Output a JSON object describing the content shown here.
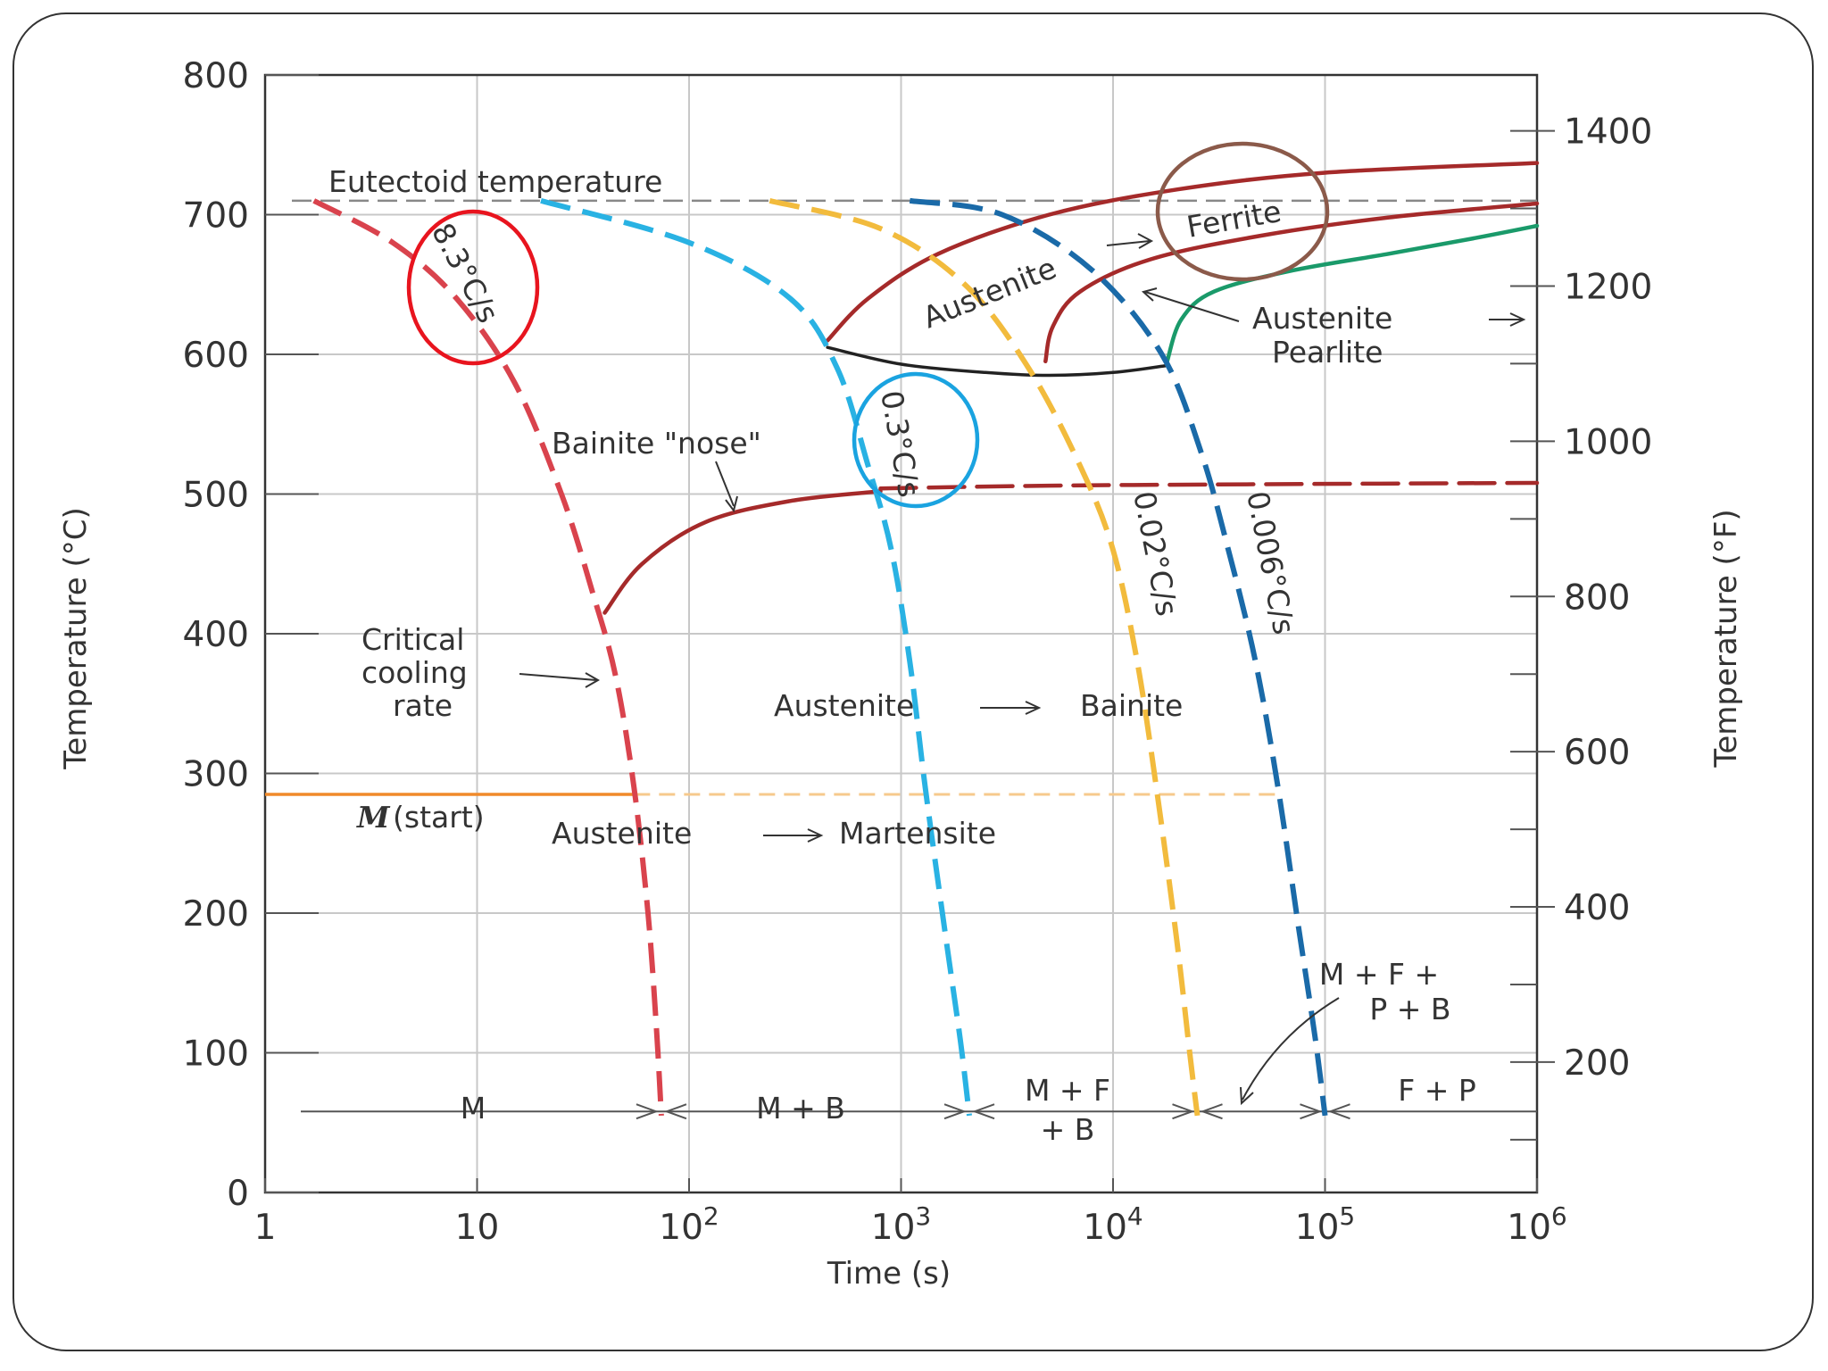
{
  "chart_data": {
    "type": "line",
    "title": "",
    "xlabel": "Time (s)",
    "ylabel": "Temperature (°C)",
    "y2label": "Temperature (°F)",
    "xscale": "log",
    "xlim": [
      1,
      1000000
    ],
    "ylim": [
      0,
      800
    ],
    "x_ticks": [
      {
        "value": 1,
        "base": "1",
        "exp": ""
      },
      {
        "value": 10,
        "base": "10",
        "exp": ""
      },
      {
        "value": 100,
        "base": "10",
        "exp": "2"
      },
      {
        "value": 1000,
        "base": "10",
        "exp": "3"
      },
      {
        "value": 10000,
        "base": "10",
        "exp": "4"
      },
      {
        "value": 100000,
        "base": "10",
        "exp": "5"
      },
      {
        "value": 1000000,
        "base": "10",
        "exp": "6"
      }
    ],
    "y_ticks": [
      0,
      100,
      200,
      300,
      400,
      500,
      600,
      700,
      800
    ],
    "y2_ticks": [
      200,
      400,
      600,
      800,
      1000,
      1200,
      1400
    ],
    "y2_minor_ticks": [
      100,
      300,
      500,
      700,
      900,
      1100,
      1300,
      1500
    ],
    "eutectoid_temperature": 710,
    "martensite_start": 285,
    "cooling_curves": [
      {
        "label": "8.3°C/s",
        "color": "#d9434d",
        "x": [
          1.7,
          4,
          8,
          15,
          25,
          35,
          45,
          55,
          64,
          70,
          74
        ],
        "y": [
          710,
          680,
          640,
          580,
          500,
          430,
          370,
          290,
          200,
          120,
          55
        ]
      },
      {
        "label": "0.3°C/s",
        "color": "#29b2e3",
        "x": [
          20,
          100,
          300,
          500,
          700,
          900,
          1100,
          1300,
          1600,
          1900,
          2100
        ],
        "y": [
          710,
          680,
          640,
          590,
          520,
          460,
          380,
          290,
          190,
          110,
          55
        ]
      },
      {
        "label": "0.02°C/s",
        "color": "#f2bb3d",
        "x": [
          240,
          800,
          2000,
          4000,
          7000,
          10000,
          13000,
          16000,
          20000,
          23000,
          25000
        ],
        "y": [
          710,
          690,
          650,
          590,
          520,
          460,
          380,
          290,
          180,
          100,
          55
        ]
      },
      {
        "label": "0.006°C/s",
        "color": "#1a6aa8",
        "x": [
          1100,
          3000,
          8000,
          17000,
          26000,
          35000,
          47000,
          60000,
          75000,
          90000,
          100000
        ],
        "y": [
          710,
          700,
          660,
          600,
          530,
          460,
          380,
          290,
          190,
          110,
          55
        ]
      }
    ],
    "transformation_curves": [
      {
        "name": "austenite-ferrite-start",
        "color": "#a52a2a",
        "x": [
          450,
          700,
          1500,
          5000,
          20000,
          100000,
          1000000
        ],
        "y": [
          610,
          640,
          672,
          700,
          718,
          730,
          737
        ]
      },
      {
        "name": "austenite-pearlite-start",
        "color": "#a52a2a",
        "x": [
          4800,
          5200,
          7000,
          15000,
          50000,
          200000,
          1000000
        ],
        "y": [
          595,
          620,
          645,
          668,
          685,
          698,
          708
        ]
      },
      {
        "name": "pearlite-finish",
        "color": "#1a9a6a",
        "x": [
          18000,
          21000,
          30000,
          70000,
          200000,
          500000,
          1000000
        ],
        "y": [
          595,
          625,
          645,
          660,
          672,
          683,
          692
        ]
      },
      {
        "name": "ferrite-pearlite-lower-boundary",
        "color": "#222222",
        "x": [
          450,
          1000,
          2500,
          5000,
          10000,
          18000
        ],
        "y": [
          605,
          593,
          587,
          585,
          587,
          592
        ]
      },
      {
        "name": "bainite-start",
        "color": "#a52a2a",
        "x": [
          40,
          60,
          120,
          300,
          800
        ],
        "y": [
          415,
          450,
          480,
          495,
          502
        ]
      },
      {
        "name": "bainite-start-dashed",
        "color": "#a52a2a",
        "x": [
          800,
          5000,
          50000,
          1000000
        ],
        "y": [
          504,
          506,
          507,
          508
        ]
      }
    ],
    "martensite_start_line": {
      "solid_x": [
        1,
        55
      ],
      "dashed_x": [
        55,
        60000
      ],
      "y": 285
    },
    "product_line_y": 58,
    "regions": [
      "M",
      "M + B",
      "M + F + B",
      "M + F + P + B",
      "F + P"
    ],
    "annotations": {
      "eutectoid": "Eutectoid temperature",
      "bainite_nose": "Bainite \"nose\"",
      "critical_1": "Critical",
      "critical_2": "cooling",
      "critical_3": "rate",
      "m_start_symbol": "M",
      "m_start_text": "(start)",
      "aus_mart_left": "Austenite",
      "aus_mart_right": "Martensite",
      "aus_bain_left": "Austenite",
      "aus_bain_right": "Bainite",
      "austenite_ferrite": "Austenite",
      "ferrite": "Ferrite",
      "austenite_pearlite_1": "Austenite",
      "austenite_pearlite_2": "Pearlite",
      "region_m": "M",
      "region_mb": "M + B",
      "region_mfb_1": "M + F",
      "region_mfb_2": "+ B",
      "region_mfpb_1": "M + F +",
      "region_mfpb_2": "P + B",
      "region_fp": "F + P"
    },
    "highlight_colors": {
      "red_circle": "#e8141e",
      "blue_circle": "#1aa3e0",
      "brown_circle": "#8b5a4a"
    }
  }
}
